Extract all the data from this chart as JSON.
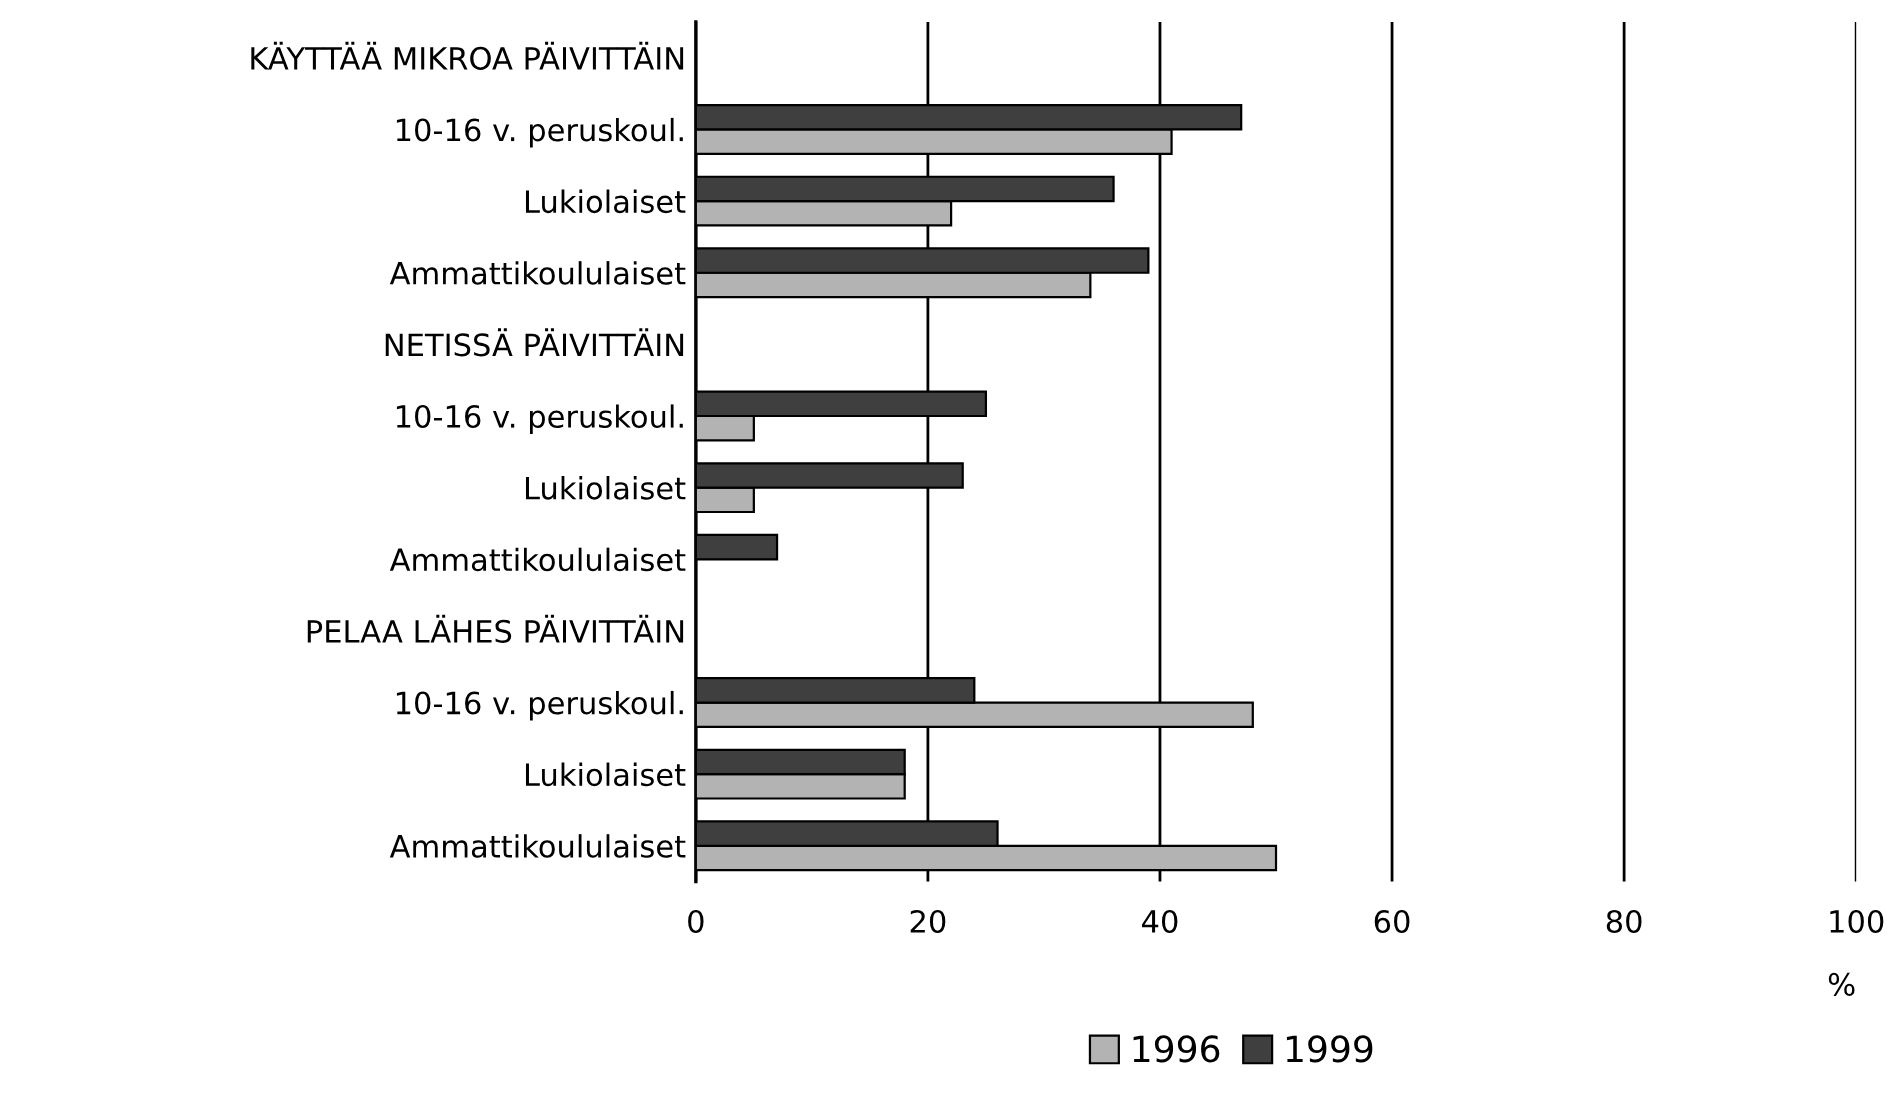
{
  "chart_data": {
    "type": "bar",
    "orientation": "horizontal",
    "xlabel": "%",
    "categories": [
      "KÄYTTÄÄ MIKROA PÄIVITTÄIN",
      "10-16 v. peruskoul.",
      "Lukiolaiset",
      "Ammattikoululaiset",
      "NETISSÄ PÄIVITTÄIN",
      "10-16 v. peruskoul.",
      "Lukiolaiset",
      "Ammattikoululaiset",
      "PELAA LÄHES PÄIVITTÄIN",
      "10-16 v. peruskoul.",
      "Lukiolaiset",
      "Ammattikoululaiset"
    ],
    "series": [
      {
        "name": "1996",
        "color": "#b3b3b3",
        "values": [
          null,
          41,
          22,
          34,
          null,
          5,
          5,
          0,
          null,
          48,
          18,
          50
        ]
      },
      {
        "name": "1999",
        "color": "#3f3f3f",
        "values": [
          null,
          47,
          36,
          39,
          null,
          25,
          23,
          7,
          null,
          24,
          18,
          26
        ]
      }
    ],
    "xlim": [
      0,
      100
    ],
    "xticks": [
      0,
      20,
      40,
      60,
      80,
      100
    ],
    "grid": "x",
    "legend": "bottom"
  }
}
